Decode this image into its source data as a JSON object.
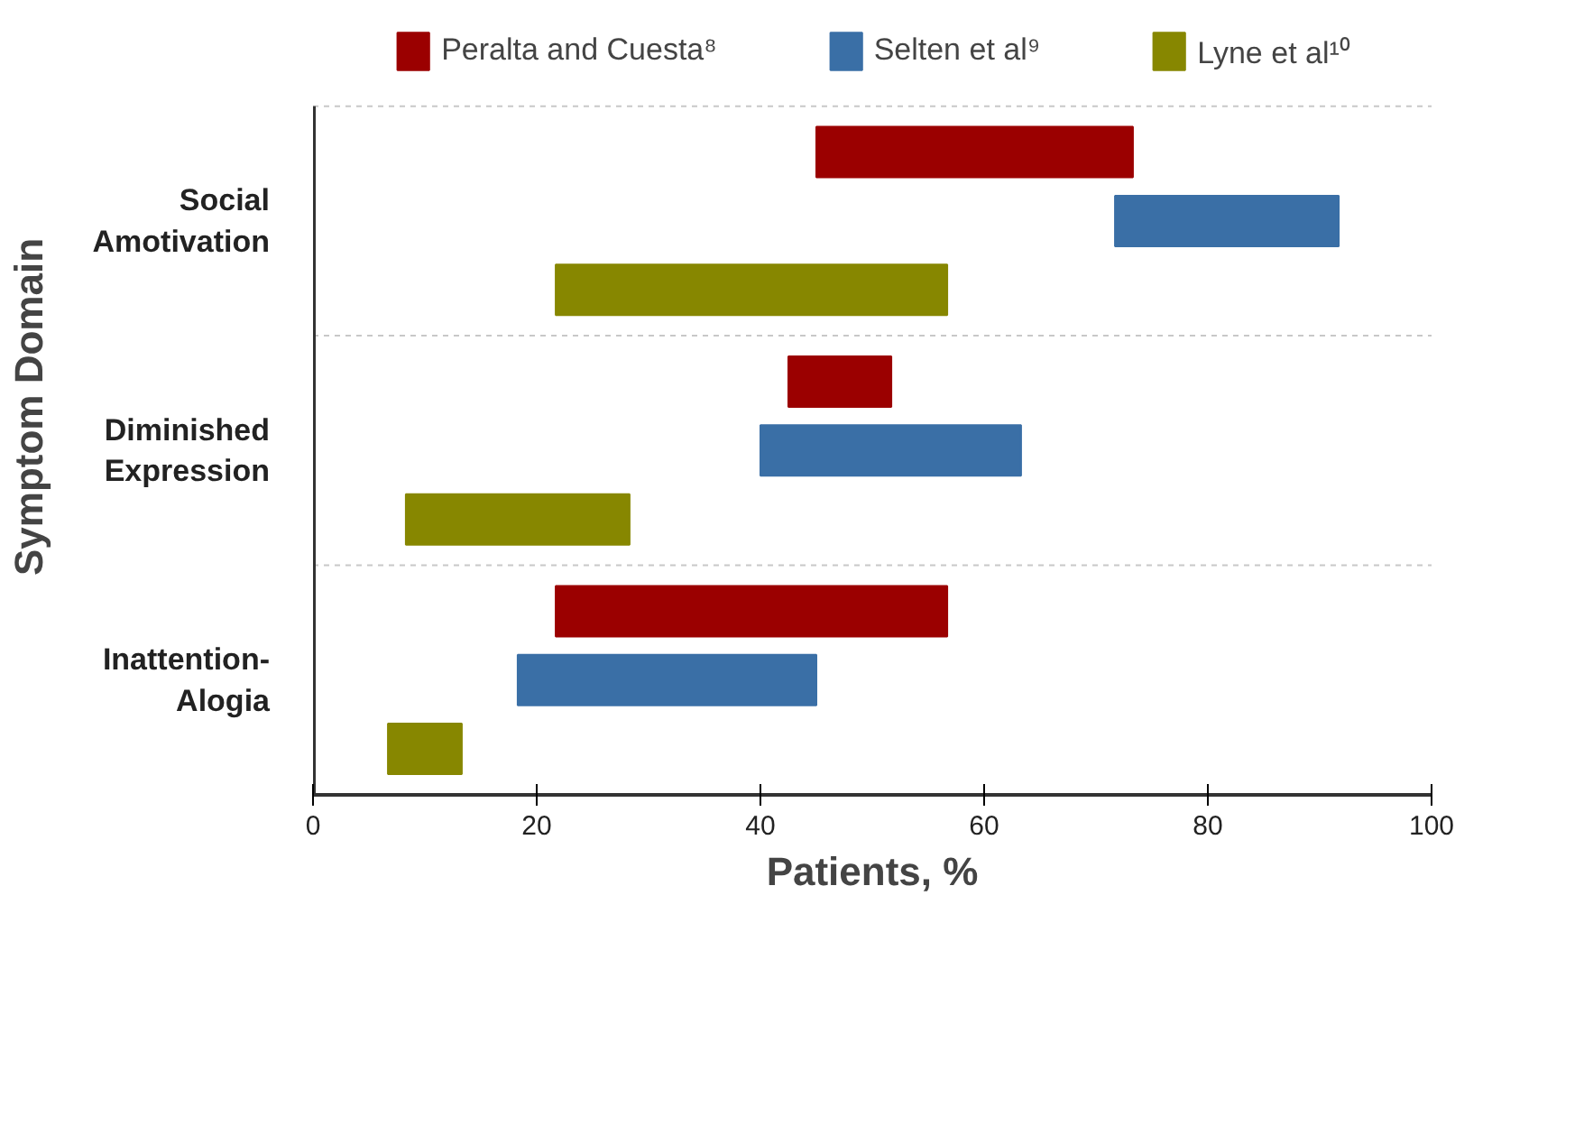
{
  "chart_data": {
    "type": "bar",
    "orientation": "horizontal",
    "xlabel": "Patients, %",
    "ylabel": "Symptom Domain",
    "categories": [
      "Social\nAmotivation",
      "Diminished\nExpression",
      "Inattention-\nAlogia"
    ],
    "series": [
      {
        "name": "Peralta and Cuesta⁸",
        "color": "#9b0000",
        "base": [
          45,
          42.5,
          21.7
        ],
        "values": [
          28.3,
          9.2,
          35.0
        ]
      },
      {
        "name": "Selten et al⁹",
        "color": "#3a6fa6",
        "base": [
          71.7,
          40,
          18.3
        ],
        "values": [
          20.0,
          23.3,
          26.7
        ]
      },
      {
        "name": "Lyne et al¹⁰",
        "color": "#878700",
        "base": [
          21.7,
          8.3,
          6.7
        ],
        "values": [
          35.0,
          20.0,
          6.6
        ]
      }
    ],
    "xlim": [
      0,
      100
    ],
    "xticks": [
      0,
      20,
      40,
      60,
      80,
      100
    ],
    "grid": "y",
    "legend": "top"
  }
}
